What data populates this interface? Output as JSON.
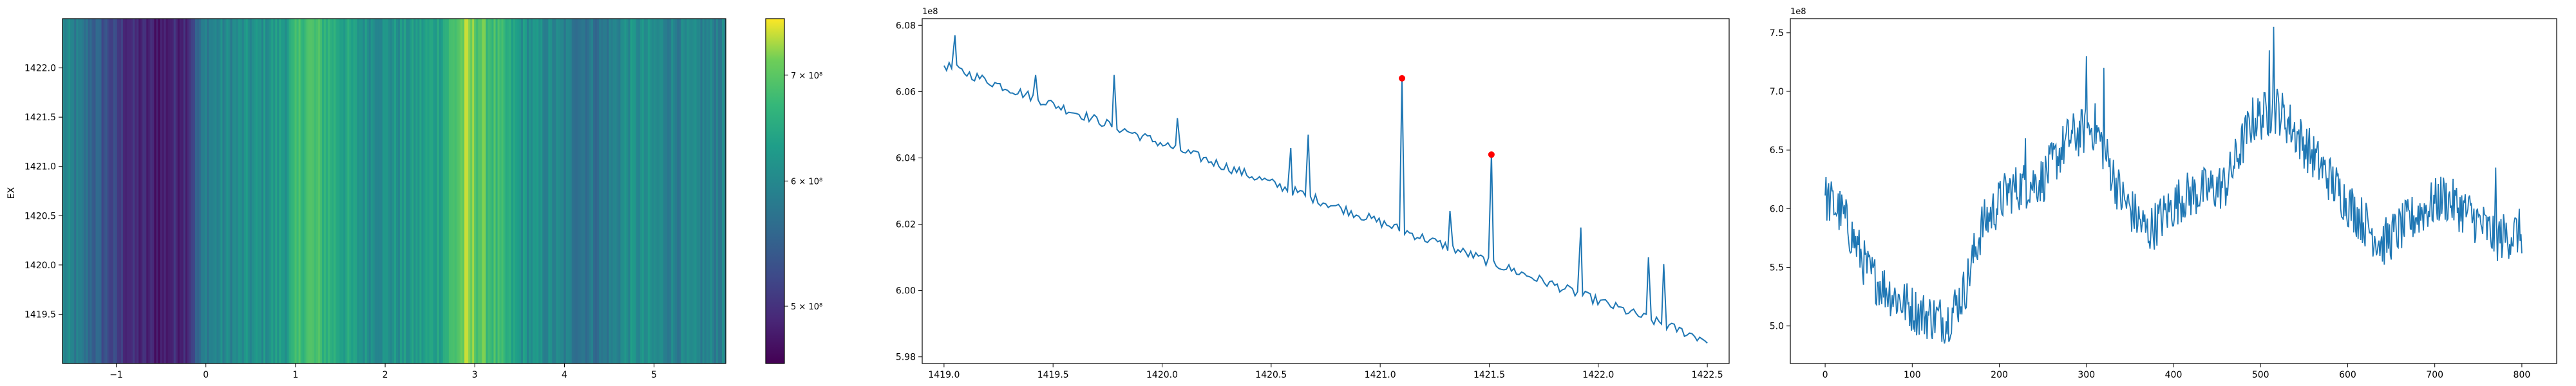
{
  "chart_data": [
    {
      "type": "heatmap",
      "ylabel": "EX",
      "xlim": [
        -1.6,
        5.8
      ],
      "ylim": [
        1419.0,
        1422.5
      ],
      "xticks": [
        -1,
        0,
        1,
        2,
        3,
        4,
        5
      ],
      "xtick_labels": [
        "−1",
        "0",
        "1",
        "2",
        "3",
        "4",
        "5"
      ],
      "yticks": [
        1419.5,
        1420.0,
        1420.5,
        1421.0,
        1421.5,
        1422.0
      ],
      "ytick_labels": [
        "1419.5",
        "1420.0",
        "1420.5",
        "1421.0",
        "1421.5",
        "1422.0"
      ],
      "colormap": "viridis",
      "colorbar": {
        "scale": "log",
        "range": [
          460000000,
          760000000
        ],
        "ticks": [
          500000000,
          600000000,
          700000000
        ],
        "tick_labels": [
          "5 × 10⁸",
          "6 × 10⁸",
          "7 × 10⁸"
        ]
      },
      "columns_profile": [
        {
          "x": -1.6,
          "v": 600000000.0
        },
        {
          "x": -1.3,
          "v": 560000000.0
        },
        {
          "x": -1.0,
          "v": 510000000.0
        },
        {
          "x": -0.8,
          "v": 490000000.0
        },
        {
          "x": -0.5,
          "v": 480000000.0
        },
        {
          "x": -0.2,
          "v": 500000000.0
        },
        {
          "x": 0.0,
          "v": 590000000.0
        },
        {
          "x": 0.3,
          "v": 600000000.0
        },
        {
          "x": 0.6,
          "v": 610000000.0
        },
        {
          "x": 0.9,
          "v": 630000000.0
        },
        {
          "x": 1.1,
          "v": 690000000.0
        },
        {
          "x": 1.4,
          "v": 660000000.0
        },
        {
          "x": 1.7,
          "v": 620000000.0
        },
        {
          "x": 2.0,
          "v": 610000000.0
        },
        {
          "x": 2.3,
          "v": 620000000.0
        },
        {
          "x": 2.6,
          "v": 640000000.0
        },
        {
          "x": 2.9,
          "v": 720000000.0
        },
        {
          "x": 3.2,
          "v": 680000000.0
        },
        {
          "x": 3.5,
          "v": 620000000.0
        },
        {
          "x": 3.8,
          "v": 600000000.0
        },
        {
          "x": 4.1,
          "v": 580000000.0
        },
        {
          "x": 4.4,
          "v": 570000000.0
        },
        {
          "x": 4.7,
          "v": 610000000.0
        },
        {
          "x": 5.0,
          "v": 600000000.0
        },
        {
          "x": 5.3,
          "v": 590000000.0
        },
        {
          "x": 5.6,
          "v": 590000000.0
        },
        {
          "x": 5.8,
          "v": 590000000.0
        }
      ]
    },
    {
      "type": "line",
      "offset_label": "1e8",
      "xlim": [
        1418.9,
        1422.6
      ],
      "ylim": [
        5.978,
        6.082
      ],
      "xticks": [
        1419.0,
        1419.5,
        1420.0,
        1420.5,
        1421.0,
        1421.5,
        1422.0,
        1422.5
      ],
      "xtick_labels": [
        "1419.0",
        "1419.5",
        "1420.0",
        "1420.5",
        "1421.0",
        "1421.5",
        "1422.0",
        "1422.5"
      ],
      "yticks": [
        5.98,
        6.0,
        6.02,
        6.04,
        6.06,
        6.08
      ],
      "ytick_labels": [
        "5.98",
        "6.00",
        "6.02",
        "6.04",
        "6.06",
        "6.08"
      ],
      "line_color": "#1f77b4",
      "marker_color": "#ff0000",
      "x_start": 1419.0,
      "x_end": 1422.5,
      "y_start": 6.068,
      "y_end": 5.985,
      "peaks": [
        {
          "x": 1419.05,
          "y": 6.077
        },
        {
          "x": 1419.42,
          "y": 6.065
        },
        {
          "x": 1419.78,
          "y": 6.065
        },
        {
          "x": 1420.07,
          "y": 6.052
        },
        {
          "x": 1420.59,
          "y": 6.043
        },
        {
          "x": 1420.67,
          "y": 6.047
        },
        {
          "x": 1421.32,
          "y": 6.024
        },
        {
          "x": 1421.92,
          "y": 6.019
        },
        {
          "x": 1422.23,
          "y": 6.01
        },
        {
          "x": 1422.3,
          "y": 6.008
        }
      ],
      "markers": [
        {
          "x": 1421.1,
          "y": 6.064
        },
        {
          "x": 1421.51,
          "y": 6.041
        }
      ]
    },
    {
      "type": "line",
      "offset_label": "1e8",
      "xlim": [
        -40,
        840
      ],
      "ylim": [
        4.68,
        7.62
      ],
      "xticks": [
        0,
        100,
        200,
        300,
        400,
        500,
        600,
        700,
        800
      ],
      "xtick_labels": [
        "0",
        "100",
        "200",
        "300",
        "400",
        "500",
        "600",
        "700",
        "800"
      ],
      "yticks": [
        5.0,
        5.5,
        6.0,
        6.5,
        7.0,
        7.5
      ],
      "ytick_labels": [
        "5.0",
        "5.5",
        "6.0",
        "6.5",
        "7.0",
        "7.5"
      ],
      "line_color": "#1f77b4",
      "n_points": 800,
      "trend": [
        {
          "x": 0,
          "y": 6.1
        },
        {
          "x": 20,
          "y": 5.95
        },
        {
          "x": 50,
          "y": 5.45
        },
        {
          "x": 80,
          "y": 5.25
        },
        {
          "x": 110,
          "y": 5.1
        },
        {
          "x": 140,
          "y": 5.05
        },
        {
          "x": 160,
          "y": 5.3
        },
        {
          "x": 180,
          "y": 5.85
        },
        {
          "x": 210,
          "y": 6.15
        },
        {
          "x": 250,
          "y": 6.25
        },
        {
          "x": 280,
          "y": 6.6
        },
        {
          "x": 310,
          "y": 6.7
        },
        {
          "x": 340,
          "y": 6.1
        },
        {
          "x": 370,
          "y": 5.8
        },
        {
          "x": 410,
          "y": 6.1
        },
        {
          "x": 460,
          "y": 6.2
        },
        {
          "x": 490,
          "y": 6.75
        },
        {
          "x": 520,
          "y": 6.85
        },
        {
          "x": 560,
          "y": 6.45
        },
        {
          "x": 600,
          "y": 6.05
        },
        {
          "x": 640,
          "y": 5.7
        },
        {
          "x": 680,
          "y": 5.95
        },
        {
          "x": 710,
          "y": 6.1
        },
        {
          "x": 740,
          "y": 5.95
        },
        {
          "x": 770,
          "y": 5.75
        },
        {
          "x": 800,
          "y": 5.8
        }
      ],
      "spikes": [
        {
          "x": 230,
          "y": 6.6
        },
        {
          "x": 300,
          "y": 7.3
        },
        {
          "x": 320,
          "y": 7.2
        },
        {
          "x": 510,
          "y": 7.35
        },
        {
          "x": 515,
          "y": 7.55
        },
        {
          "x": 770,
          "y": 6.35
        }
      ]
    }
  ]
}
